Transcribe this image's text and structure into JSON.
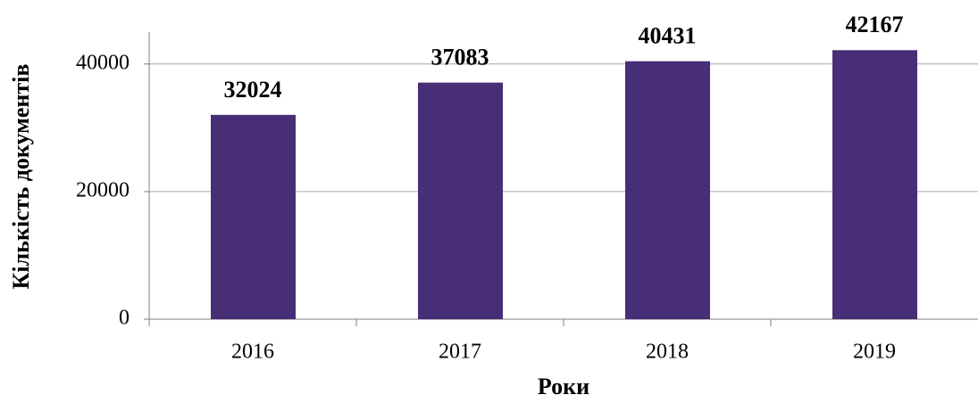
{
  "chart_data": {
    "type": "bar",
    "categories": [
      "2016",
      "2017",
      "2018",
      "2019"
    ],
    "values": [
      32024,
      37083,
      40431,
      42167
    ],
    "color": "#482e76",
    "x_label": "Роки",
    "y_label": "Кількість документів",
    "ylim": [
      0,
      45000
    ],
    "yticks": [
      0,
      20000,
      40000
    ],
    "grid": true
  }
}
